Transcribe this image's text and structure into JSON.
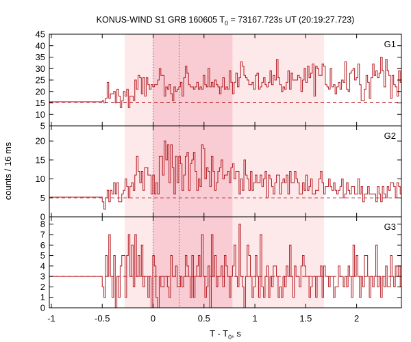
{
  "chart_data": {
    "type": "line",
    "title": {
      "main": "KONUS-WIND S1 GRB 160605 T",
      "sub": "0",
      "rest": " = 73167.723s UT (20:19:27.723)"
    },
    "xlabel": {
      "main": "T - T",
      "sub": "0",
      "rest": ", s"
    },
    "ylabel": "counts / 16 ms",
    "xlim": [
      -1.02,
      2.44
    ],
    "xticks": [
      -1,
      -0.5,
      0,
      0.5,
      1,
      1.5,
      2
    ],
    "xtick_labels": [
      "-1",
      "-0.5",
      "0",
      "0.5",
      "1",
      "1.5",
      "2"
    ],
    "bin_width_s": 0.016,
    "shaded_regions": [
      {
        "range": [
          -0.28,
          1.68
        ],
        "color": "#fde8ea"
      },
      {
        "range": [
          0.0,
          0.78
        ],
        "color": "#f8ccd2"
      }
    ],
    "vertical_markers": [
      0,
      0.256
    ],
    "colors": {
      "histogram": "#b3171e",
      "background_line": "#b3171e",
      "axes": "#000000"
    },
    "panels": [
      {
        "name": "G1",
        "ylim": [
          5,
          45
        ],
        "yticks": [
          5,
          10,
          15,
          20,
          25,
          30,
          35,
          40,
          45
        ],
        "ytick_labels": [
          "5",
          "10",
          "15",
          "20",
          "25",
          "30",
          "35",
          "40",
          "45"
        ],
        "background_level": 15.3,
        "pre_trigger_level": 15.5,
        "counts": [
          16,
          15,
          17,
          24,
          17,
          19,
          19,
          20,
          15,
          21,
          18,
          13,
          16,
          20,
          18,
          21,
          13,
          18,
          18,
          16,
          25,
          21,
          27,
          26,
          19,
          26,
          18,
          26,
          23,
          21,
          23,
          22,
          23,
          23,
          25,
          30,
          27,
          27,
          18,
          22,
          21,
          23,
          19,
          16,
          22,
          20,
          21,
          22,
          24,
          18,
          26,
          31,
          28,
          23,
          22,
          22,
          21,
          22,
          24,
          21,
          22,
          21,
          27,
          23,
          22,
          30,
          22,
          24,
          22,
          25,
          23,
          22,
          19,
          22,
          26,
          21,
          22,
          21,
          29,
          24,
          19,
          24,
          28,
          22,
          26,
          33,
          31,
          27,
          26,
          25,
          23,
          23,
          24,
          21,
          27,
          28,
          21,
          22,
          24,
          26,
          23,
          22,
          24,
          29,
          23,
          27,
          25,
          34,
          26,
          23,
          20,
          22,
          21,
          24,
          29,
          21,
          28,
          25,
          25,
          25,
          27,
          26,
          20,
          25,
          30,
          24,
          31,
          26,
          28,
          32,
          18,
          31,
          30,
          27,
          27,
          32,
          31,
          23,
          22,
          21,
          30,
          22,
          23,
          19,
          22,
          24,
          21,
          25,
          24,
          33,
          21,
          20,
          28,
          29,
          30,
          25,
          26,
          32,
          23,
          16,
          16,
          21,
          27,
          24,
          17,
          26,
          32,
          27,
          29,
          26,
          28,
          35,
          29,
          22,
          34,
          29,
          27,
          17,
          27,
          23,
          22,
          18,
          29,
          24,
          22,
          29,
          17,
          23,
          16,
          33,
          26,
          23,
          29,
          24,
          20,
          22,
          22,
          27,
          34,
          21,
          23,
          23,
          24,
          27,
          20,
          23,
          25,
          29,
          21,
          17,
          18,
          26,
          23,
          17,
          21,
          15,
          11,
          22,
          21,
          19,
          13,
          19,
          22,
          22,
          22,
          19
        ]
      },
      {
        "name": "G2",
        "ylim": [
          0,
          24
        ],
        "yticks": [
          0,
          5,
          10,
          15,
          20
        ],
        "ytick_labels": [
          "0",
          "5",
          "10",
          "15",
          "20"
        ],
        "background_level": 5.0,
        "pre_trigger_level": 5.2,
        "counts": [
          4,
          2,
          5,
          7,
          4,
          7,
          6,
          9,
          6,
          9,
          4,
          4,
          6,
          7,
          10,
          8,
          5,
          8,
          9,
          7,
          11,
          16,
          12,
          9,
          12,
          7,
          13,
          13,
          11,
          11,
          6,
          11,
          6,
          9,
          6,
          16,
          16,
          11,
          20,
          15,
          19,
          9,
          19,
          13,
          6,
          16,
          9,
          16,
          14,
          7,
          11,
          16,
          17,
          7,
          14,
          15,
          17,
          12,
          7,
          10,
          8,
          19,
          18,
          10,
          13,
          12,
          8,
          16,
          12,
          7,
          9,
          12,
          13,
          15,
          10,
          11,
          11,
          12,
          9,
          13,
          14,
          10,
          12,
          12,
          6,
          10,
          7,
          15,
          11,
          10,
          7,
          12,
          7,
          9,
          11,
          9,
          9,
          11,
          8,
          10,
          12,
          5,
          11,
          10,
          8,
          6,
          9,
          11,
          11,
          6,
          9,
          10,
          9,
          11,
          6,
          12,
          9,
          9,
          12,
          10,
          9,
          6,
          6,
          9,
          7,
          11,
          7,
          8,
          10,
          6,
          6,
          7,
          7,
          10,
          12,
          9,
          6,
          8,
          8,
          10,
          8,
          7,
          9,
          7,
          6,
          7,
          8,
          10,
          5,
          6,
          9,
          7,
          6,
          8,
          8,
          6,
          6,
          10,
          6,
          8,
          4,
          6,
          6,
          8,
          6,
          6,
          6,
          6,
          4,
          8,
          6,
          4,
          8,
          6,
          5,
          8,
          7,
          9,
          9,
          8,
          5,
          9,
          8,
          6,
          5,
          8,
          9,
          3,
          4,
          5,
          9,
          5,
          7,
          5,
          6,
          6,
          1,
          7,
          9,
          6,
          6,
          3,
          2,
          6,
          4,
          7,
          5,
          5,
          5,
          3,
          6,
          4,
          3,
          5,
          4,
          5,
          2,
          5,
          6,
          5,
          4,
          4,
          5,
          3,
          6,
          2
        ]
      },
      {
        "name": "G3",
        "ylim": [
          0,
          8.7
        ],
        "yticks": [
          0,
          1,
          2,
          3,
          4,
          5,
          6,
          7,
          8
        ],
        "ytick_labels": [
          "0",
          "1",
          "2",
          "3",
          "4",
          "5",
          "6",
          "7",
          "8"
        ],
        "background_level": 3.0,
        "pre_trigger_level": 3.0,
        "counts": [
          2,
          1,
          5,
          3,
          7,
          3,
          1,
          5,
          0,
          3,
          1,
          4,
          5,
          5,
          1,
          5,
          7,
          3,
          6,
          2,
          7,
          3,
          5,
          3,
          6,
          2,
          3,
          3,
          1,
          3,
          0,
          5,
          4,
          1,
          0,
          3,
          2,
          2,
          3,
          3,
          2,
          1,
          5,
          3,
          3,
          4,
          2,
          2,
          3,
          2,
          3,
          5,
          4,
          3,
          1,
          5,
          1,
          3,
          4,
          5,
          3,
          7,
          3,
          1,
          2,
          4,
          0,
          7,
          3,
          5,
          2,
          3,
          3,
          4,
          2,
          5,
          4,
          3,
          1,
          3,
          4,
          6,
          3,
          2,
          8,
          3,
          2,
          0,
          3,
          6,
          5,
          3,
          1,
          2,
          5,
          3,
          1,
          7,
          2,
          1,
          3,
          4,
          1,
          3,
          2,
          4,
          4,
          3,
          1,
          2,
          1,
          3,
          2,
          4,
          3,
          6,
          3,
          1,
          4,
          3,
          3,
          2,
          4,
          5,
          4,
          3,
          3,
          1,
          2,
          3,
          3,
          1,
          3,
          3,
          4,
          1,
          4,
          3,
          3,
          2,
          3,
          3,
          1,
          2,
          2,
          4,
          3,
          3,
          2,
          3,
          2,
          4,
          3,
          1,
          6,
          3,
          5,
          3,
          1,
          3,
          2,
          5,
          5,
          3,
          1,
          3,
          2,
          3,
          6,
          2,
          3,
          1,
          3,
          2,
          4,
          2,
          2,
          5,
          3,
          2,
          4,
          3,
          4,
          2,
          3,
          5,
          1,
          4,
          3,
          6,
          2,
          4,
          2,
          2,
          4,
          3,
          3,
          4,
          1,
          2,
          3,
          5,
          3,
          3,
          2,
          1,
          3,
          3,
          4,
          2,
          2,
          3,
          1,
          3,
          2,
          4,
          3,
          3,
          3,
          2,
          3
        ]
      }
    ]
  }
}
